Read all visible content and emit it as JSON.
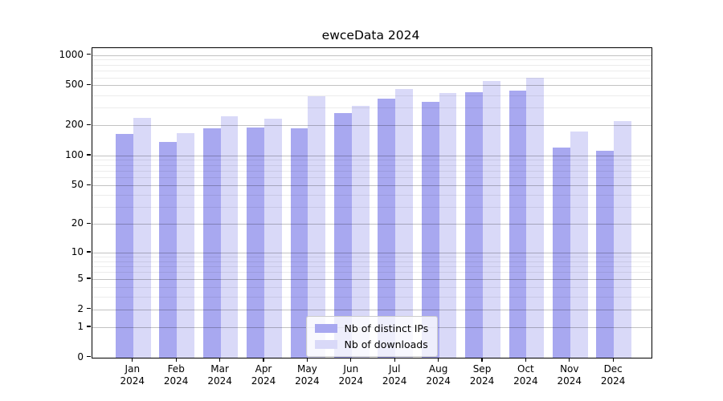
{
  "chart_data": {
    "type": "bar",
    "title": "ewceData 2024",
    "categories": [
      "Jan",
      "Feb",
      "Mar",
      "Apr",
      "May",
      "Jun",
      "Jul",
      "Aug",
      "Sep",
      "Oct",
      "Nov",
      "Dec"
    ],
    "category_year": "2024",
    "series": [
      {
        "name": "Nb of distinct IPs",
        "color": "#a8a8f0",
        "values": [
          165,
          136,
          186,
          190,
          187,
          265,
          368,
          344,
          430,
          441,
          121,
          112
        ]
      },
      {
        "name": "Nb of downloads",
        "color": "#d9d9f8",
        "values": [
          237,
          167,
          245,
          234,
          390,
          312,
          460,
          420,
          552,
          595,
          174,
          220
        ]
      }
    ],
    "y_axis": {
      "scale": "log1p",
      "ticks": [
        0,
        1,
        2,
        5,
        10,
        20,
        50,
        100,
        200,
        500,
        1000
      ],
      "minor_gridlines": [
        3,
        4,
        6,
        7,
        8,
        9,
        30,
        40,
        60,
        70,
        80,
        90,
        300,
        400,
        600,
        700,
        800,
        900
      ],
      "ylim": [
        0,
        1170
      ]
    },
    "xlabel": "",
    "ylabel": "",
    "grid": "horizontal, major and minor, drawn over bars",
    "legend_position": "bottom-center-inside"
  }
}
